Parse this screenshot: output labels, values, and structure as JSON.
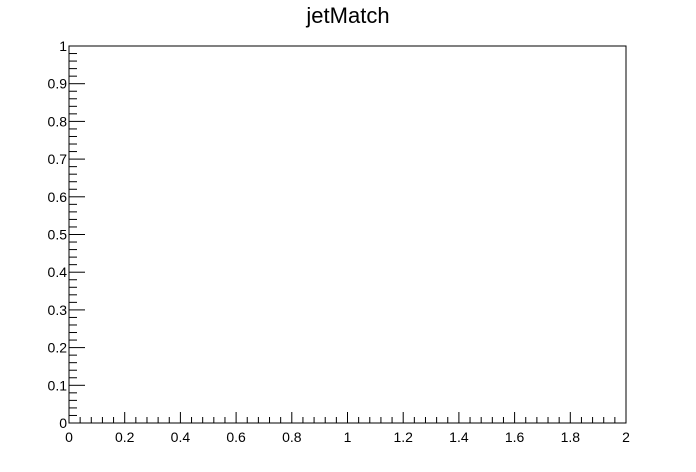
{
  "chart_data": {
    "type": "line",
    "title": "jetMatch",
    "xlabel": "",
    "ylabel": "",
    "xlim": [
      0,
      2
    ],
    "ylim": [
      0,
      1
    ],
    "x_ticks": [
      "0",
      "0.2",
      "0.4",
      "0.6",
      "0.8",
      "1",
      "1.2",
      "1.4",
      "1.6",
      "1.8",
      "2"
    ],
    "y_ticks": [
      "0",
      "0.1",
      "0.2",
      "0.3",
      "0.4",
      "0.5",
      "0.6",
      "0.7",
      "0.8",
      "0.9",
      "1"
    ],
    "x_minor_per_major": 5,
    "y_minor_per_major": 5,
    "series": [],
    "grid": false,
    "legend": "none",
    "colors": {
      "frame": "#000000",
      "background": "#ffffff"
    }
  }
}
